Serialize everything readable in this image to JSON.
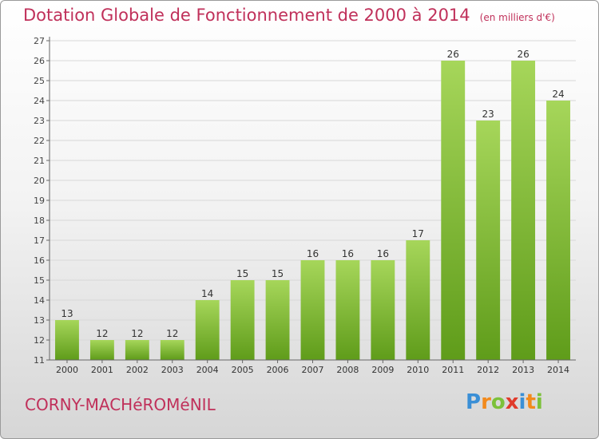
{
  "title": "Dotation Globale de Fonctionnement de 2000 à 2014",
  "unit_note": "(en milliers d'€)",
  "commune": "CORNY-MACHéROMéNIL",
  "logo": {
    "text": "Proxiti",
    "letters": [
      {
        "ch": "P",
        "color": "#3a8fd6"
      },
      {
        "ch": "r",
        "color": "#f28a1c"
      },
      {
        "ch": "o",
        "color": "#7cc13a"
      },
      {
        "ch": "x",
        "color": "#e03b2b"
      },
      {
        "ch": "i",
        "color": "#3a8fd6"
      },
      {
        "ch": "t",
        "color": "#f28a1c"
      },
      {
        "ch": "i",
        "color": "#7cc13a"
      }
    ]
  },
  "colors": {
    "title": "#c0305a",
    "bar_light": "#a6d65a",
    "bar_dark": "#5f9c1a",
    "grid": "#d8d8d8"
  },
  "chart_data": {
    "type": "bar",
    "categories": [
      "2000",
      "2001",
      "2002",
      "2003",
      "2004",
      "2005",
      "2006",
      "2007",
      "2008",
      "2009",
      "2010",
      "2011",
      "2012",
      "2013",
      "2014"
    ],
    "values": [
      13,
      12,
      12,
      12,
      14,
      15,
      15,
      16,
      16,
      16,
      17,
      26,
      23,
      26,
      24
    ],
    "ylim": [
      11,
      27
    ],
    "yticks": [
      11,
      12,
      13,
      14,
      15,
      16,
      17,
      18,
      19,
      20,
      21,
      22,
      23,
      24,
      25,
      26,
      27
    ],
    "grid": true
  }
}
